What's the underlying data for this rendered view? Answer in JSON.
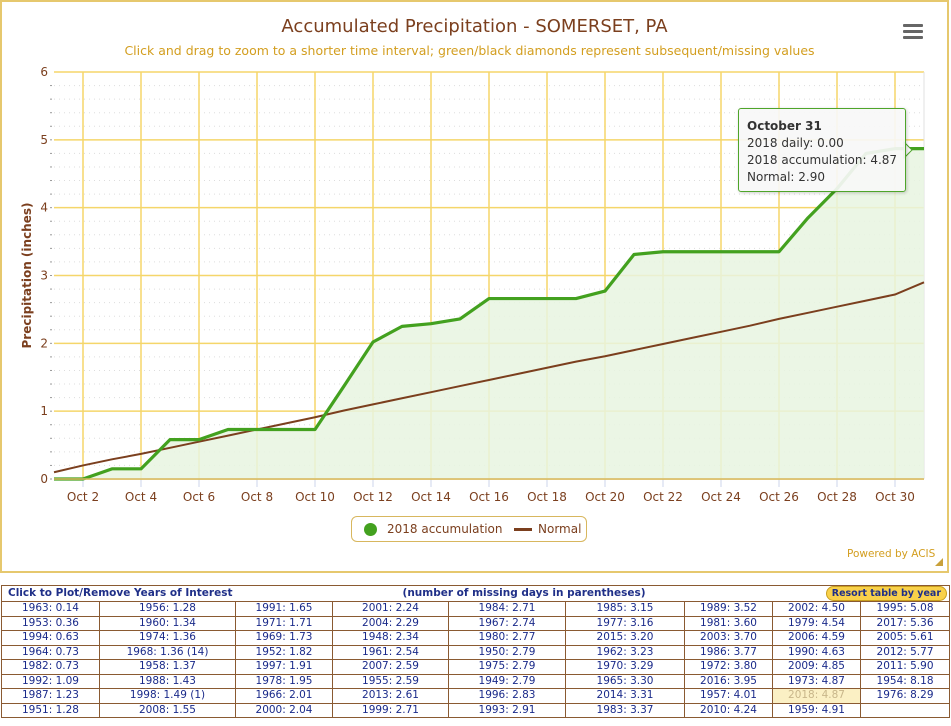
{
  "chart": {
    "title": "Accumulated Precipitation - SOMERSET, PA",
    "subtitle": "Click and drag to zoom to a shorter time interval; green/black diamonds represent subsequent/missing values",
    "menu_icon": "hamburger-menu-icon",
    "powered_by": "Powered by ACIS",
    "legend": {
      "accum_label": "2018 accumulation",
      "normal_label": "Normal"
    },
    "tooltip": {
      "title": "October 31",
      "line1": "2018 daily: 0.00",
      "line2": "2018 accumulation: 4.87",
      "line3": "Normal: 2.90"
    },
    "colors": {
      "accum": "#43a11f",
      "accum_fill": "#e8f4e0",
      "normal": "#7b3f1e",
      "grid": "#f5d66a",
      "title": "#7b3f1e",
      "subtitle": "#d39e1f"
    }
  },
  "chart_data": {
    "type": "area",
    "title": "Accumulated Precipitation - SOMERSET, PA",
    "xlabel": "",
    "ylabel": "Precipitation (inches)",
    "ylim": [
      0,
      6
    ],
    "yticks": [
      "0",
      "1",
      "2",
      "3",
      "4",
      "5",
      "6"
    ],
    "xticks": [
      "Oct 2",
      "Oct 4",
      "Oct 6",
      "Oct 8",
      "Oct 10",
      "Oct 12",
      "Oct 14",
      "Oct 16",
      "Oct 18",
      "Oct 20",
      "Oct 22",
      "Oct 24",
      "Oct 26",
      "Oct 28",
      "Oct 30"
    ],
    "x": [
      1,
      2,
      3,
      4,
      5,
      6,
      7,
      8,
      9,
      10,
      11,
      12,
      13,
      14,
      15,
      16,
      17,
      18,
      19,
      20,
      21,
      22,
      23,
      24,
      25,
      26,
      27,
      28,
      29,
      30,
      31
    ],
    "series": [
      {
        "name": "2018 accumulation",
        "type": "area",
        "values": [
          0.0,
          0.0,
          0.15,
          0.15,
          0.58,
          0.58,
          0.73,
          0.73,
          0.73,
          0.73,
          1.37,
          2.02,
          2.25,
          2.29,
          2.36,
          2.66,
          2.66,
          2.66,
          2.66,
          2.77,
          3.31,
          3.35,
          3.35,
          3.35,
          3.35,
          3.35,
          3.85,
          4.28,
          4.8,
          4.87,
          4.87
        ]
      },
      {
        "name": "Normal",
        "type": "line",
        "values": [
          0.1,
          0.2,
          0.29,
          0.37,
          0.46,
          0.55,
          0.64,
          0.73,
          0.82,
          0.91,
          1.01,
          1.1,
          1.19,
          1.28,
          1.37,
          1.46,
          1.55,
          1.64,
          1.73,
          1.81,
          1.9,
          1.99,
          2.08,
          2.17,
          2.26,
          2.36,
          2.45,
          2.54,
          2.63,
          2.72,
          2.9
        ]
      }
    ],
    "grid": true,
    "legend_position": "bottom-center"
  },
  "table": {
    "header_left": "Click to Plot/Remove Years of Interest",
    "header_mid": "(number of missing days in parentheses)",
    "resort_label": "Resort table by year",
    "highlight": "2018: 4.87",
    "rows": [
      [
        "1963: 0.14",
        "1956: 1.28",
        "1991: 1.65",
        "2001: 2.24",
        "1984: 2.71",
        "1985: 3.15",
        "1989: 3.52",
        "2002: 4.50",
        "1995: 5.08"
      ],
      [
        "1953: 0.36",
        "1960: 1.34",
        "1971: 1.71",
        "2004: 2.29",
        "1967: 2.74",
        "1977: 3.16",
        "1981: 3.60",
        "1979: 4.54",
        "2017: 5.36"
      ],
      [
        "1994: 0.63",
        "1974: 1.36",
        "1969: 1.73",
        "1948: 2.34",
        "1980: 2.77",
        "2015: 3.20",
        "2003: 3.70",
        "2006: 4.59",
        "2005: 5.61"
      ],
      [
        "1964: 0.73",
        "1968: 1.36 (14)",
        "1952: 1.82",
        "1961: 2.54",
        "1950: 2.79",
        "1962: 3.23",
        "1986: 3.77",
        "1990: 4.63",
        "2012: 5.77"
      ],
      [
        "1982: 0.73",
        "1958: 1.37",
        "1997: 1.91",
        "2007: 2.59",
        "1975: 2.79",
        "1970: 3.29",
        "1972: 3.80",
        "2009: 4.85",
        "2011: 5.90"
      ],
      [
        "1992: 1.09",
        "1988: 1.43",
        "1978: 1.95",
        "1955: 2.59",
        "1949: 2.79",
        "1965: 3.30",
        "2016: 3.95",
        "1973: 4.87",
        "1954: 8.18"
      ],
      [
        "1987: 1.23",
        "1998: 1.49 (1)",
        "1966: 2.01",
        "2013: 2.61",
        "1996: 2.83",
        "2014: 3.31",
        "1957: 4.01",
        "2018: 4.87",
        "1976: 8.29"
      ],
      [
        "1951: 1.28",
        "2008: 1.55",
        "2000: 2.04",
        "1999: 2.71",
        "1993: 2.91",
        "1983: 3.37",
        "2010: 4.24",
        "1959: 4.91",
        ""
      ]
    ]
  }
}
